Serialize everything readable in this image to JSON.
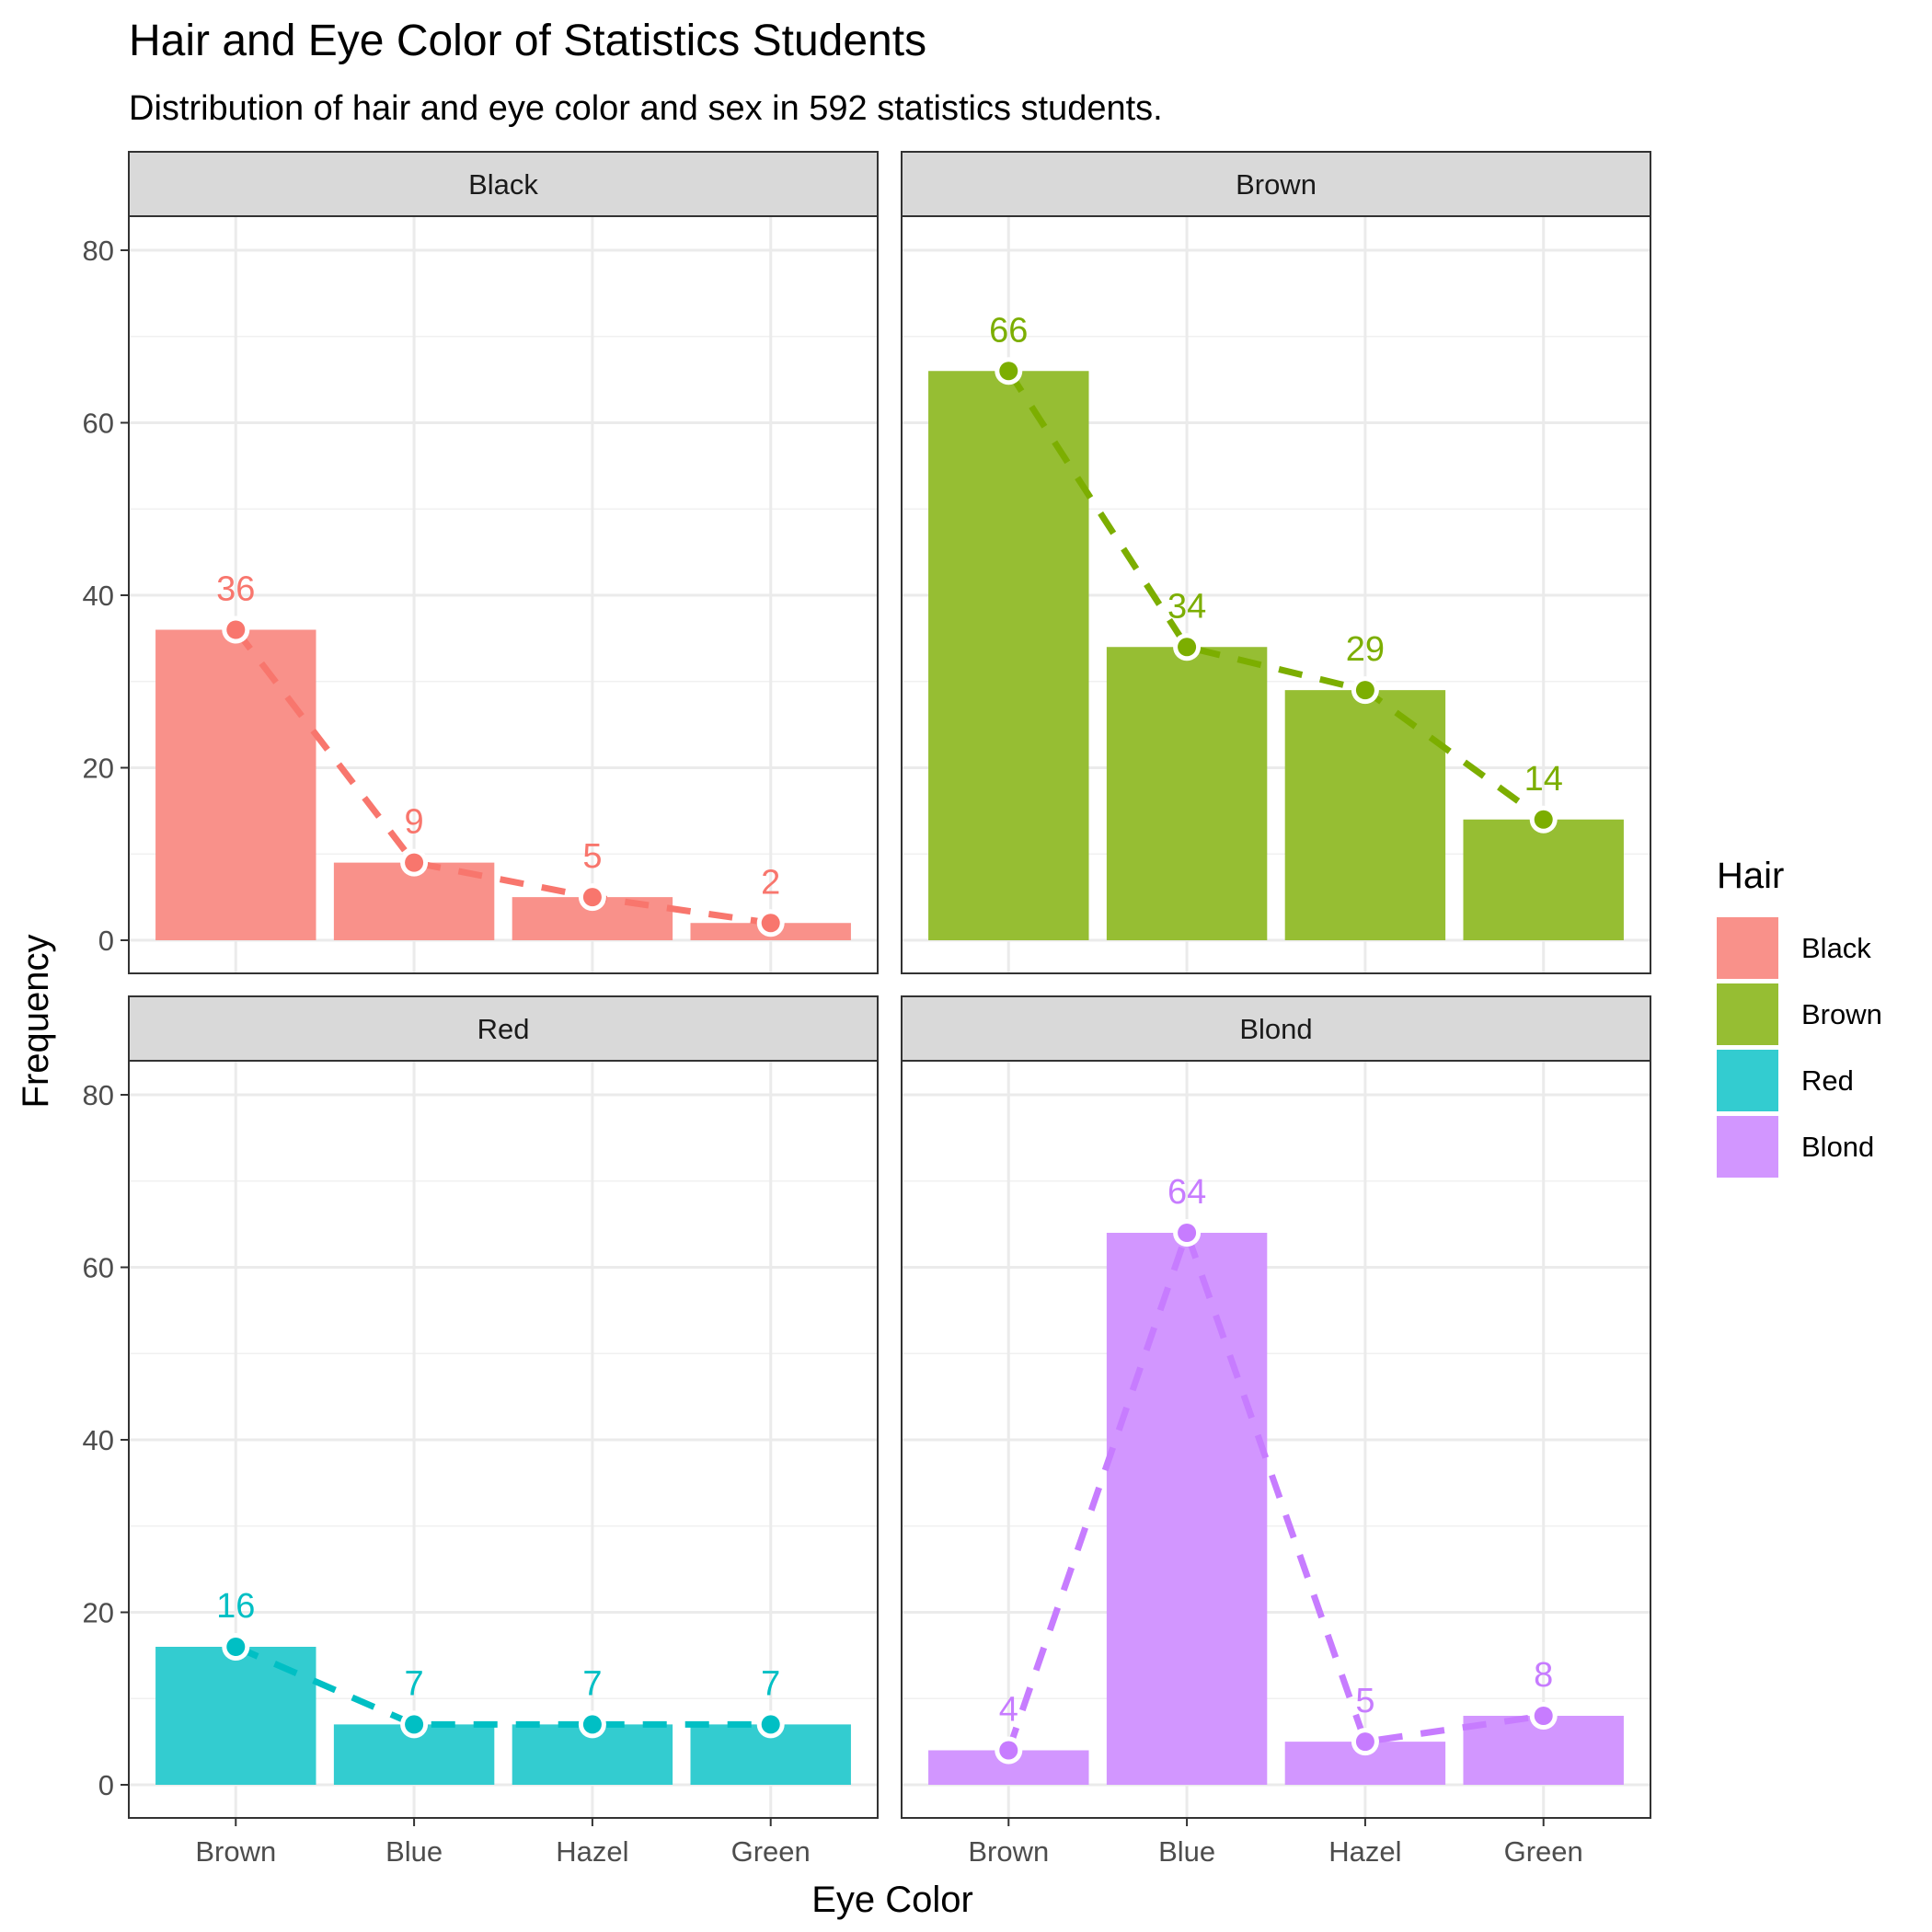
{
  "chart_data": {
    "type": "bar",
    "title": "Hair and Eye Color of Statistics Students",
    "subtitle": "Distribution of hair and eye color and sex in 592 statistics students.",
    "xlabel": "Eye Color",
    "ylabel": "Frequency",
    "categories": [
      "Brown",
      "Blue",
      "Hazel",
      "Green"
    ],
    "ylim": [
      0,
      84
    ],
    "y_ticks": [
      0,
      20,
      40,
      60,
      80
    ],
    "grid": true,
    "legend": {
      "title": "Hair",
      "position": "right"
    },
    "series": [
      {
        "name": "Black",
        "color": "#F8766D",
        "values": [
          36,
          9,
          5,
          2
        ]
      },
      {
        "name": "Brown",
        "color": "#7CAE00",
        "values": [
          66,
          34,
          29,
          14
        ]
      },
      {
        "name": "Red",
        "color": "#00BFC4",
        "values": [
          16,
          7,
          7,
          7
        ]
      },
      {
        "name": "Blond",
        "color": "#C77CFF",
        "values": [
          4,
          64,
          5,
          8
        ]
      }
    ],
    "overlay": {
      "type": "line",
      "style": "dashed",
      "markers": "points",
      "labels": "values"
    }
  }
}
